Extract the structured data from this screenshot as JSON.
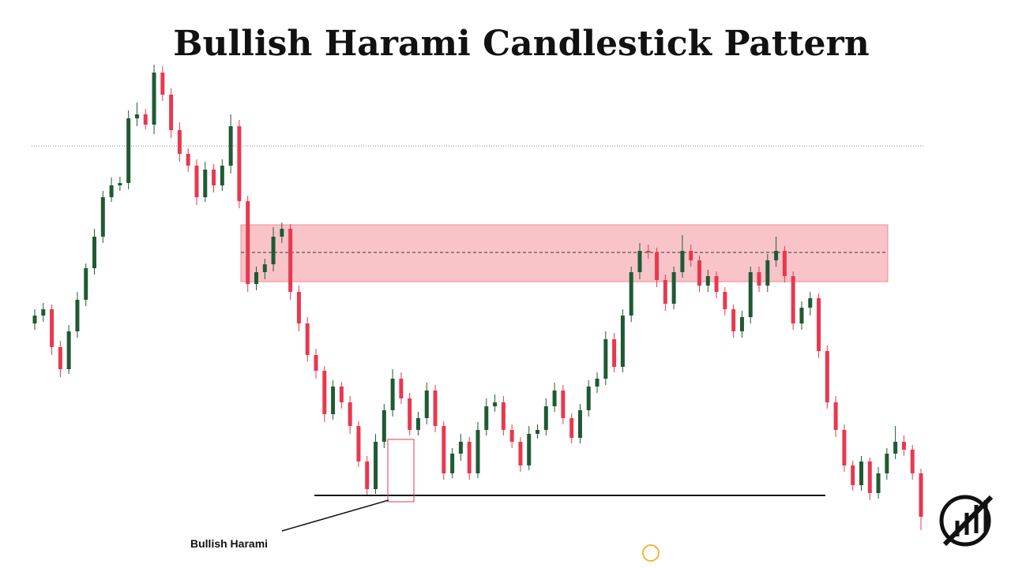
{
  "chart_data": {
    "type": "candlestick",
    "title": "Bullish Harami Candlestick Pattern",
    "annotation": "Bullish Harami",
    "up_color": "#1f5a35",
    "down_color": "#e8384f",
    "ylim": [
      0,
      620
    ],
    "ohlc": [
      [
        290,
        308,
        282,
        300
      ],
      [
        300,
        316,
        292,
        308
      ],
      [
        308,
        314,
        250,
        260
      ],
      [
        260,
        268,
        222,
        232
      ],
      [
        232,
        288,
        226,
        280
      ],
      [
        280,
        330,
        272,
        320
      ],
      [
        320,
        366,
        312,
        360
      ],
      [
        360,
        410,
        352,
        400
      ],
      [
        400,
        458,
        392,
        450
      ],
      [
        450,
        475,
        444,
        465
      ],
      [
        465,
        476,
        458,
        468
      ],
      [
        468,
        560,
        460,
        550
      ],
      [
        550,
        570,
        540,
        555
      ],
      [
        555,
        562,
        536,
        542
      ],
      [
        542,
        618,
        530,
        608
      ],
      [
        608,
        616,
        572,
        580
      ],
      [
        580,
        588,
        525,
        535
      ],
      [
        535,
        545,
        495,
        505
      ],
      [
        505,
        512,
        482,
        490
      ],
      [
        490,
        498,
        440,
        450
      ],
      [
        450,
        495,
        444,
        485
      ],
      [
        485,
        492,
        456,
        465
      ],
      [
        465,
        498,
        458,
        490
      ],
      [
        490,
        555,
        480,
        540
      ],
      [
        540,
        548,
        436,
        445
      ],
      [
        445,
        452,
        330,
        340
      ],
      [
        340,
        362,
        332,
        355
      ],
      [
        355,
        372,
        346,
        365
      ],
      [
        365,
        412,
        356,
        400
      ],
      [
        400,
        418,
        392,
        410
      ],
      [
        410,
        416,
        320,
        330
      ],
      [
        330,
        338,
        280,
        290
      ],
      [
        290,
        298,
        242,
        250
      ],
      [
        250,
        258,
        220,
        230
      ],
      [
        230,
        236,
        165,
        175
      ],
      [
        175,
        218,
        168,
        210
      ],
      [
        210,
        216,
        182,
        190
      ],
      [
        190,
        198,
        150,
        160
      ],
      [
        160,
        166,
        108,
        115
      ],
      [
        115,
        122,
        72,
        80
      ],
      [
        80,
        150,
        74,
        140
      ],
      [
        140,
        188,
        132,
        180
      ],
      [
        180,
        232,
        172,
        220
      ],
      [
        220,
        228,
        188,
        195
      ],
      [
        195,
        202,
        148,
        155
      ],
      [
        155,
        178,
        148,
        170
      ],
      [
        170,
        215,
        162,
        205
      ],
      [
        205,
        212,
        152,
        160
      ],
      [
        160,
        166,
        92,
        100
      ],
      [
        100,
        132,
        94,
        125
      ],
      [
        125,
        150,
        116,
        140
      ],
      [
        140,
        146,
        92,
        100
      ],
      [
        100,
        165,
        94,
        155
      ],
      [
        155,
        195,
        148,
        185
      ],
      [
        185,
        200,
        178,
        190
      ],
      [
        190,
        198,
        148,
        155
      ],
      [
        155,
        162,
        132,
        140
      ],
      [
        140,
        146,
        102,
        110
      ],
      [
        110,
        160,
        104,
        150
      ],
      [
        150,
        162,
        144,
        155
      ],
      [
        155,
        195,
        148,
        185
      ],
      [
        185,
        215,
        178,
        205
      ],
      [
        205,
        212,
        162,
        170
      ],
      [
        170,
        176,
        138,
        145
      ],
      [
        145,
        188,
        138,
        180
      ],
      [
        180,
        218,
        172,
        210
      ],
      [
        210,
        228,
        202,
        220
      ],
      [
        220,
        280,
        212,
        270
      ],
      [
        270,
        278,
        228,
        235
      ],
      [
        235,
        308,
        228,
        300
      ],
      [
        300,
        362,
        292,
        355
      ],
      [
        355,
        392,
        346,
        382
      ],
      [
        382,
        390,
        372,
        380
      ],
      [
        380,
        386,
        336,
        345
      ],
      [
        345,
        352,
        306,
        315
      ],
      [
        315,
        362,
        308,
        355
      ],
      [
        355,
        402,
        348,
        382
      ],
      [
        382,
        390,
        362,
        370
      ],
      [
        370,
        376,
        330,
        338
      ],
      [
        338,
        358,
        330,
        350
      ],
      [
        350,
        356,
        322,
        330
      ],
      [
        330,
        336,
        300,
        308
      ],
      [
        308,
        314,
        272,
        280
      ],
      [
        280,
        306,
        272,
        298
      ],
      [
        298,
        362,
        290,
        355
      ],
      [
        355,
        362,
        330,
        338
      ],
      [
        338,
        378,
        330,
        370
      ],
      [
        370,
        400,
        362,
        382
      ],
      [
        382,
        388,
        342,
        350
      ],
      [
        350,
        356,
        282,
        290
      ],
      [
        290,
        318,
        282,
        310
      ],
      [
        310,
        330,
        300,
        322
      ],
      [
        322,
        328,
        246,
        255
      ],
      [
        255,
        262,
        182,
        190
      ],
      [
        190,
        198,
        146,
        155
      ],
      [
        155,
        162,
        102,
        110
      ],
      [
        110,
        116,
        78,
        85
      ],
      [
        85,
        122,
        78,
        115
      ],
      [
        115,
        120,
        66,
        75
      ],
      [
        75,
        108,
        68,
        100
      ],
      [
        100,
        132,
        92,
        125
      ],
      [
        125,
        160,
        118,
        140
      ],
      [
        140,
        148,
        122,
        130
      ],
      [
        130,
        136,
        92,
        100
      ],
      [
        100,
        106,
        28,
        45
      ]
    ]
  }
}
